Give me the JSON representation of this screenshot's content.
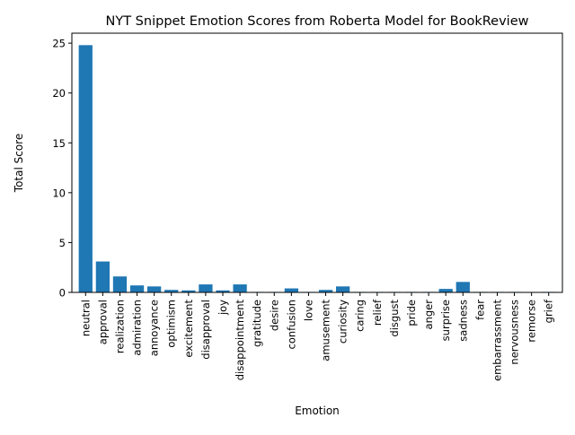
{
  "chart_data": {
    "type": "bar",
    "title": "NYT Snippet Emotion Scores from Roberta Model for BookReview",
    "xlabel": "Emotion",
    "ylabel": "Total Score",
    "ylim": [
      0,
      26
    ],
    "yticks": [
      0,
      5,
      10,
      15,
      20,
      25
    ],
    "grid": false,
    "bar_color": "#1f77b4",
    "categories": [
      "neutral",
      "approval",
      "realization",
      "admiration",
      "annoyance",
      "optimism",
      "excitement",
      "disapproval",
      "joy",
      "disappointment",
      "gratitude",
      "desire",
      "confusion",
      "love",
      "amusement",
      "curiosity",
      "caring",
      "relief",
      "disgust",
      "pride",
      "anger",
      "surprise",
      "sadness",
      "fear",
      "embarrassment",
      "nervousness",
      "remorse",
      "grief"
    ],
    "values": [
      24.8,
      3.1,
      1.6,
      0.7,
      0.6,
      0.25,
      0.2,
      0.8,
      0.2,
      0.8,
      0.05,
      0.05,
      0.4,
      0.05,
      0.25,
      0.6,
      0.05,
      0.05,
      0.05,
      0.05,
      0.05,
      0.35,
      1.05,
      0.05,
      0.05,
      0.05,
      0.01,
      0.05
    ]
  }
}
